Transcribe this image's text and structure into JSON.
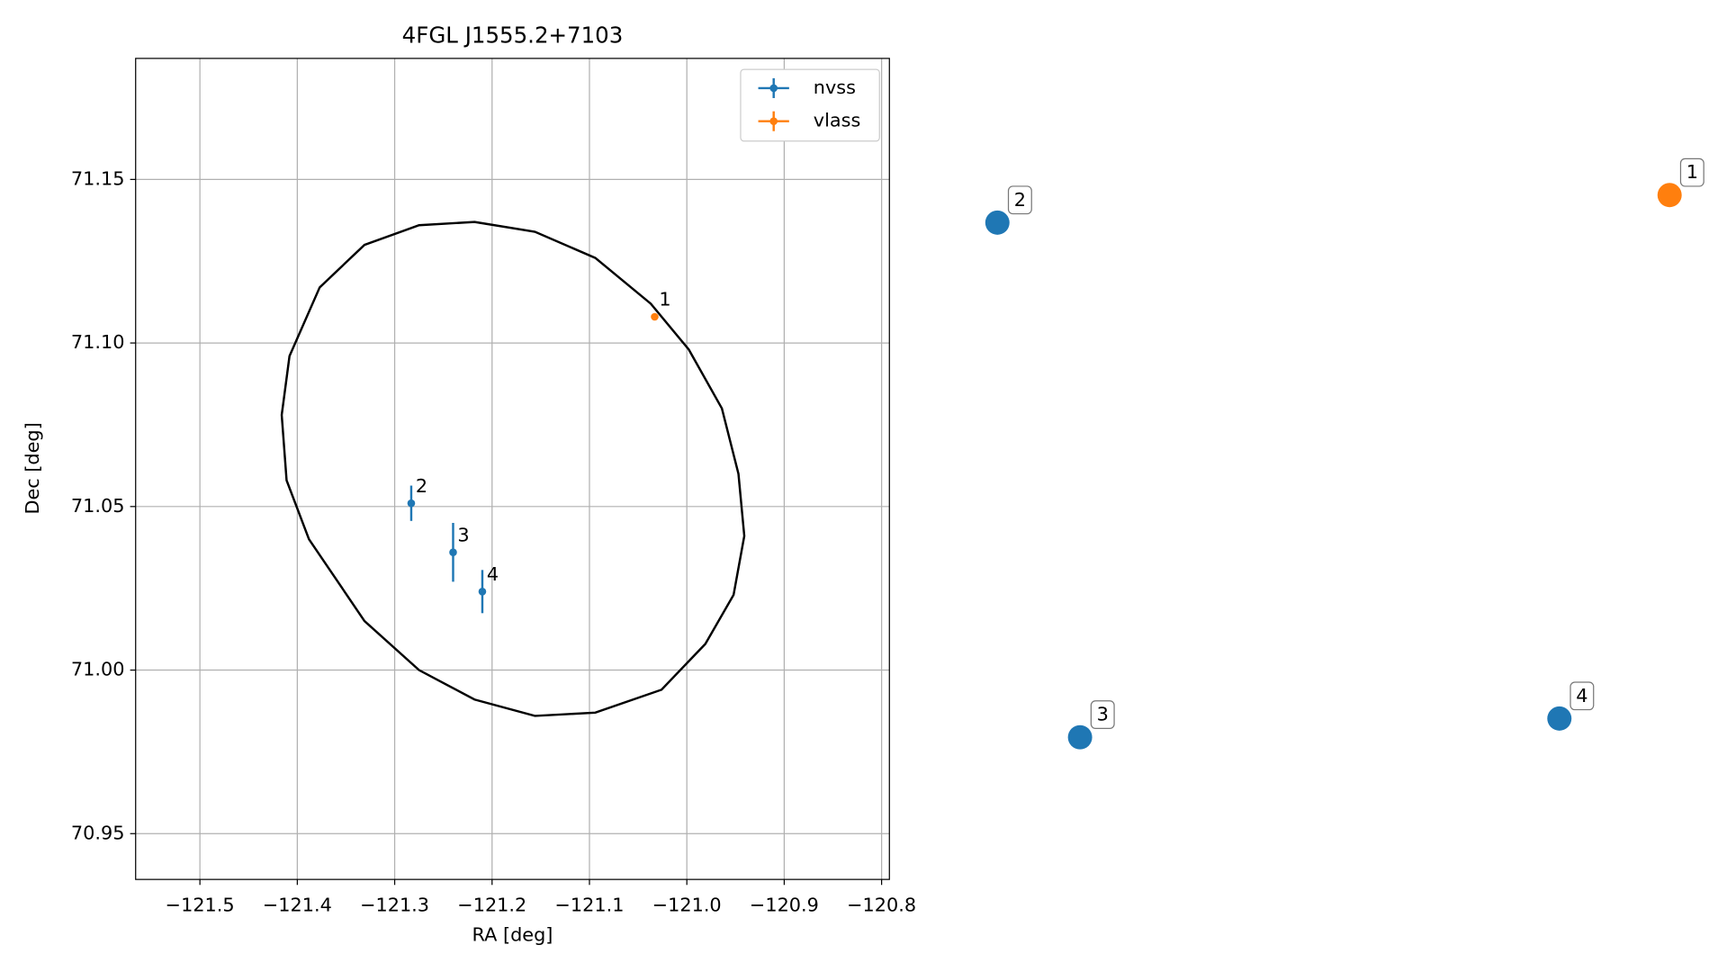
{
  "chart_data": {
    "type": "scatter",
    "title": "4FGL J1555.2+7103",
    "x_label": "RA [deg]",
    "y_label": "Dec [deg]",
    "xlim": [
      -121.566,
      -120.792
    ],
    "ylim": [
      70.936,
      71.187
    ],
    "xticks": [
      {
        "value": -121.5,
        "label": "−121.5"
      },
      {
        "value": -121.4,
        "label": "−121.4"
      },
      {
        "value": -121.3,
        "label": "−121.3"
      },
      {
        "value": -121.2,
        "label": "−121.2"
      },
      {
        "value": -121.1,
        "label": "−121.1"
      },
      {
        "value": -121.0,
        "label": "−121.0"
      },
      {
        "value": -120.9,
        "label": "−120.9"
      },
      {
        "value": -120.8,
        "label": "−120.8"
      }
    ],
    "yticks": [
      70.95,
      {
        "value": 71,
        "label": "71.00"
      },
      71.05,
      {
        "value": 71.1,
        "label": "71.10"
      },
      71.15
    ],
    "grid": true,
    "legend": "upper right",
    "series": [
      {
        "name": "nvss",
        "color": "#1f77b4",
        "x": [
          -121.283,
          -121.24,
          -121.21
        ],
        "y": [
          71.051,
          71.036,
          71.024
        ],
        "yerr": [
          0.0054,
          0.009,
          0.0066
        ],
        "labels": [
          "2",
          "3",
          "4"
        ]
      },
      {
        "name": "vlass",
        "color": "#ff7f0e",
        "x": [
          -121.033
        ],
        "y": [
          71.108
        ],
        "yerr": [
          0.0005
        ],
        "labels": [
          "1"
        ]
      }
    ],
    "ellipse": {
      "x": [
        -121.218,
        -121.156,
        -121.094,
        -121.037,
        -120.998,
        -120.964,
        -120.947,
        -120.941,
        -120.952,
        -120.981,
        -121.026,
        -121.094,
        -121.156,
        -121.218,
        -121.275,
        -121.331,
        -121.388,
        -121.411,
        -121.416,
        -121.408,
        -121.377,
        -121.331,
        -121.275
      ],
      "y": [
        71.137,
        71.134,
        71.126,
        71.112,
        71.098,
        71.08,
        71.06,
        71.041,
        71.023,
        71.008,
        70.994,
        70.987,
        70.986,
        70.991,
        71.0,
        71.015,
        71.04,
        71.058,
        71.078,
        71.096,
        71.117,
        71.13,
        71.136
      ]
    }
  }
}
